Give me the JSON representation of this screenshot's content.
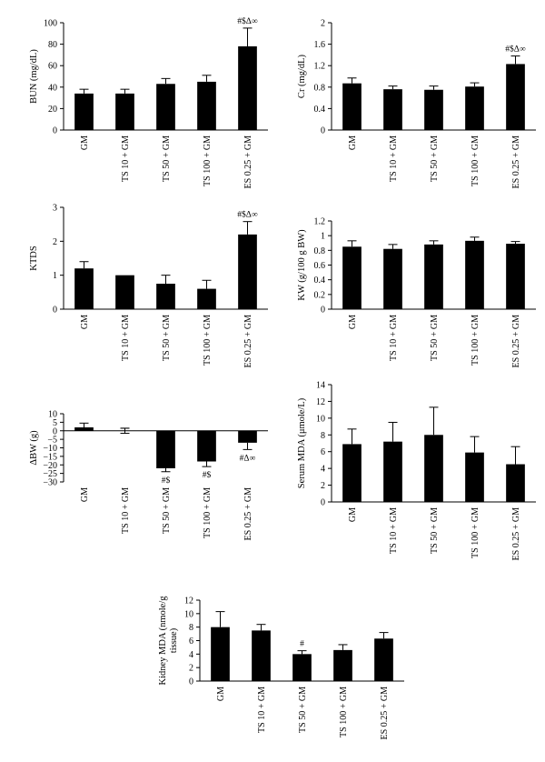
{
  "chart_data": [
    {
      "id": "bun",
      "type": "bar",
      "categories": [
        "GM",
        "TS 10 + GM",
        "TS 50 + GM",
        "TS 100 + GM",
        "ES 0.25 + GM"
      ],
      "values": [
        34,
        34,
        43,
        45,
        78
      ],
      "errors": [
        4,
        4,
        5,
        6,
        17
      ],
      "annotations": [
        "",
        "",
        "",
        "",
        "#$Δ∞"
      ],
      "ylabel": "BUN (mg/dL)",
      "ylim": [
        0,
        100
      ],
      "yticks": [
        0,
        20,
        40,
        60,
        80,
        100
      ],
      "yticklabels": [
        "0",
        "20",
        "40",
        "60",
        "80",
        "100"
      ]
    },
    {
      "id": "cr",
      "type": "bar",
      "categories": [
        "GM",
        "TS 10 + GM",
        "TS 50 + GM",
        "TS 100 + GM",
        "ES 0.25 + GM"
      ],
      "values": [
        0.87,
        0.76,
        0.75,
        0.81,
        1.23
      ],
      "errors": [
        0.1,
        0.06,
        0.07,
        0.07,
        0.15
      ],
      "annotations": [
        "",
        "",
        "",
        "",
        "#$Δ∞"
      ],
      "ylabel": "Cr (mg/dL)",
      "ylim": [
        0,
        2
      ],
      "yticks": [
        0,
        0.4,
        0.8,
        1.2,
        1.6,
        2
      ],
      "yticklabels": [
        "0",
        "0.4",
        "0.8",
        "1.2",
        "1.6",
        "2"
      ]
    },
    {
      "id": "ktds",
      "type": "bar",
      "categories": [
        "GM",
        "TS 10 + GM",
        "TS 50 + GM",
        "TS 100 + GM",
        "ES 0.25 + GM"
      ],
      "values": [
        1.2,
        1.0,
        0.75,
        0.6,
        2.2
      ],
      "errors": [
        0.2,
        0,
        0.25,
        0.25,
        0.38
      ],
      "annotations": [
        "",
        "",
        "",
        "",
        "#$Δ∞"
      ],
      "ylabel": "KTDS",
      "ylim": [
        0,
        3
      ],
      "yticks": [
        0,
        1,
        2,
        3
      ],
      "yticklabels": [
        "0",
        "1",
        "2",
        "3"
      ]
    },
    {
      "id": "kw",
      "type": "bar",
      "categories": [
        "GM",
        "TS 10 + GM",
        "TS 50 + GM",
        "TS 100 + GM",
        "ES 0.25 + GM"
      ],
      "values": [
        0.85,
        0.82,
        0.88,
        0.93,
        0.89
      ],
      "errors": [
        0.08,
        0.06,
        0.05,
        0.05,
        0.03
      ],
      "annotations": [
        "",
        "",
        "",
        "",
        ""
      ],
      "ylabel": "KW (g/100 g BW)",
      "ylim": [
        0,
        1.2
      ],
      "yticks": [
        0,
        0.2,
        0.4,
        0.6,
        0.8,
        1,
        1.2
      ],
      "yticklabels": [
        "0",
        "0.2",
        "0.4",
        "0.6",
        "0.8",
        "1",
        "1.2"
      ]
    },
    {
      "id": "dbw",
      "type": "bar",
      "categories": [
        "GM",
        "TS 10 + GM",
        "TS 50 + GM",
        "TS 100 + GM",
        "ES 0.25 + GM"
      ],
      "values": [
        2,
        0,
        -22,
        -18,
        -7
      ],
      "errors": [
        2.5,
        1.5,
        2,
        3,
        4
      ],
      "annotations": [
        "",
        "",
        "#$",
        "#$",
        "#Δ∞"
      ],
      "ylabel": "ΔBW (g)",
      "ylim": [
        -30,
        10
      ],
      "yticks": [
        -30,
        -25,
        -20,
        -15,
        -10,
        -5,
        0,
        5,
        10
      ],
      "yticklabels": [
        "−30",
        "−25",
        "−20",
        "−15",
        "−10",
        "−5",
        "0",
        "5",
        "10"
      ]
    },
    {
      "id": "smda",
      "type": "bar",
      "categories": [
        "GM",
        "TS 10 + GM",
        "TS 50 + GM",
        "TS 100 + GM",
        "ES 0.25 + GM"
      ],
      "values": [
        6.9,
        7.2,
        8.0,
        5.9,
        4.5
      ],
      "errors": [
        1.8,
        2.3,
        3.3,
        1.9,
        2.1
      ],
      "annotations": [
        "",
        "",
        "",
        "",
        ""
      ],
      "ylabel": "Serum MDA (μmole/L)",
      "ylim": [
        0,
        14
      ],
      "yticks": [
        0,
        2,
        4,
        6,
        8,
        10,
        12,
        14
      ],
      "yticklabels": [
        "0",
        "2",
        "4",
        "6",
        "8",
        "10",
        "12",
        "14"
      ]
    },
    {
      "id": "kmda",
      "type": "bar",
      "categories": [
        "GM",
        "TS 10 + GM",
        "TS 50 + GM",
        "TS 100 + GM",
        "ES 0.25 + GM"
      ],
      "values": [
        8.0,
        7.5,
        4.0,
        4.6,
        6.3
      ],
      "errors": [
        2.3,
        0.9,
        0.5,
        0.8,
        0.9
      ],
      "annotations": [
        "",
        "",
        "#",
        "",
        ""
      ],
      "ylabel": "Kidney MDA (nmole/g tissue)",
      "ylabel_lines": [
        "Kidney MDA (nmole/g",
        "tissue)"
      ],
      "ylim": [
        0,
        12
      ],
      "yticks": [
        0,
        2,
        4,
        6,
        8,
        10,
        12
      ],
      "yticklabels": [
        "0",
        "2",
        "4",
        "6",
        "8",
        "10",
        "12"
      ]
    }
  ]
}
